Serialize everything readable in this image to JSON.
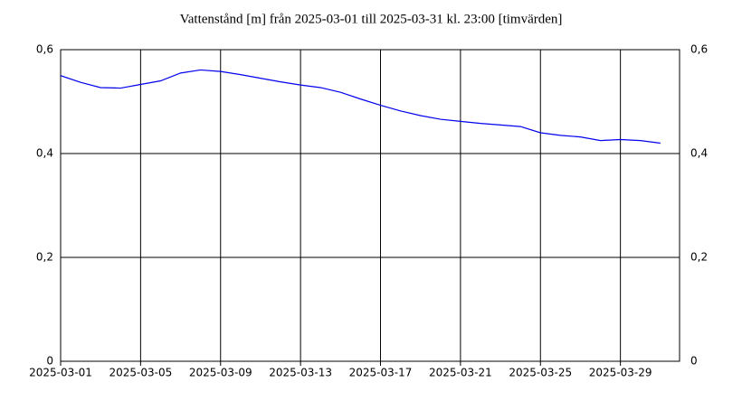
{
  "chart_data": {
    "type": "line",
    "title": "Vattenstånd [m] från 2025-03-01 till 2025-03-31 kl. 23:00 [timvärden]",
    "x": [
      "2025-03-01",
      "2025-03-02",
      "2025-03-03",
      "2025-03-04",
      "2025-03-05",
      "2025-03-06",
      "2025-03-07",
      "2025-03-08",
      "2025-03-09",
      "2025-03-10",
      "2025-03-11",
      "2025-03-12",
      "2025-03-13",
      "2025-03-14",
      "2025-03-15",
      "2025-03-16",
      "2025-03-17",
      "2025-03-18",
      "2025-03-19",
      "2025-03-20",
      "2025-03-21",
      "2025-03-22",
      "2025-03-23",
      "2025-03-24",
      "2025-03-25",
      "2025-03-26",
      "2025-03-27",
      "2025-03-28",
      "2025-03-29",
      "2025-03-30",
      "2025-03-31"
    ],
    "series": [
      {
        "color": "#0000ee",
        "values": [
          0.55,
          0.537,
          0.527,
          0.526,
          0.533,
          0.54,
          0.555,
          0.561,
          0.558,
          0.552,
          0.545,
          0.538,
          0.532,
          0.527,
          0.518,
          0.505,
          0.493,
          0.482,
          0.473,
          0.466,
          0.462,
          0.458,
          0.455,
          0.452,
          0.44,
          0.435,
          0.432,
          0.425,
          0.427,
          0.425,
          0.42
        ]
      }
    ],
    "xlim": [
      "2025-03-01 00:00",
      "2025-03-31 23:00"
    ],
    "xticks": [
      "2025-03-01",
      "2025-03-05",
      "2025-03-09",
      "2025-03-13",
      "2025-03-17",
      "2025-03-21",
      "2025-03-25",
      "2025-03-29"
    ],
    "ylim": [
      0,
      0.6
    ],
    "yticks": [
      {
        "value": 0,
        "label": "0"
      },
      {
        "value": 0.2,
        "label": "0,2"
      },
      {
        "value": 0.4,
        "label": "0,4"
      },
      {
        "value": 0.6,
        "label": "0,6"
      }
    ],
    "grid": true
  }
}
